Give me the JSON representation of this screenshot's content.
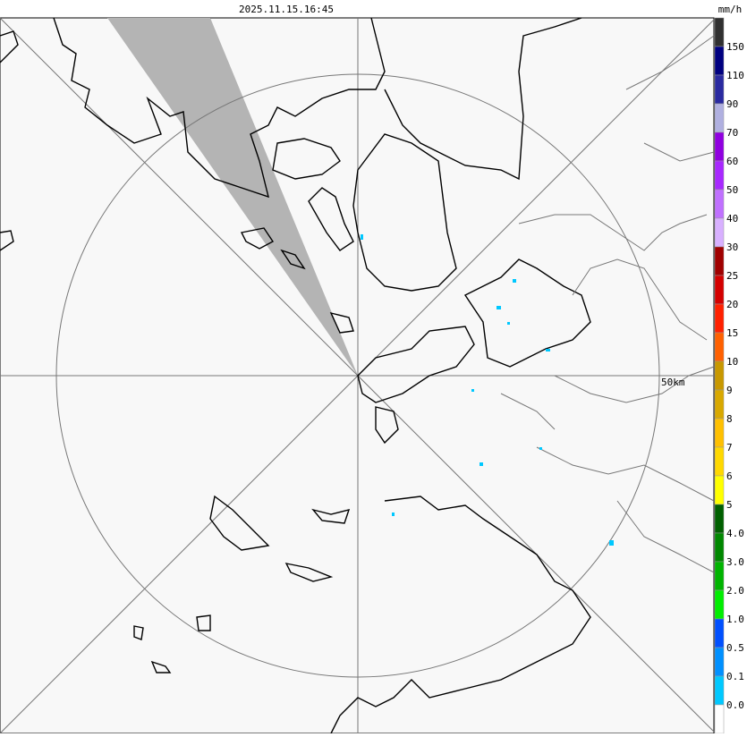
{
  "header": {
    "timestamp": "2025.11.15.16:45",
    "unit": "mm/h"
  },
  "map": {
    "range_label": "50km"
  },
  "legend": {
    "colors": [
      "#303030",
      "#000080",
      "#2a2aa0",
      "#b0b0e0",
      "#9000e0",
      "#a828ff",
      "#c070ff",
      "#d8b0ff",
      "#a00000",
      "#d40000",
      "#ff2000",
      "#ff6000",
      "#c89800",
      "#d8a800",
      "#ffc000",
      "#ffd800",
      "#ffff00",
      "#006000",
      "#008800",
      "#00b400",
      "#00ee00",
      "#0050ff",
      "#0090ff",
      "#00c8ff",
      "#ffffff"
    ],
    "labels": [
      "150",
      "110",
      "90",
      "70",
      "60",
      "50",
      "40",
      "30",
      "25",
      "20",
      "15",
      "10",
      "9",
      "8",
      "7",
      "6",
      "5",
      "4.0",
      "3.0",
      "2.0",
      "1.0",
      "0.5",
      "0.1",
      "0.0"
    ]
  }
}
